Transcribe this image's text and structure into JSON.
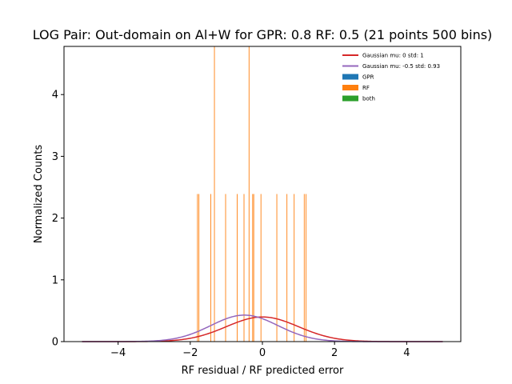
{
  "chart_data": {
    "type": "histogram",
    "title": "LOG Pair: Out-domain on Al+W for GPR: 0.8 RF: 0.5 (21 points 500 bins)",
    "xlabel": "RF residual / RF predicted error",
    "ylabel": "Normalized Counts",
    "xlim": [
      -5.5,
      5.5
    ],
    "ylim": [
      0,
      4.78
    ],
    "xticks": [
      -4,
      -2,
      0,
      2,
      4
    ],
    "xtick_labels": [
      "−4",
      "−2",
      "0",
      "2",
      "4"
    ],
    "yticks": [
      0,
      1,
      2,
      3,
      4
    ],
    "ytick_labels": [
      "0",
      "1",
      "2",
      "3",
      "4"
    ],
    "grid": false,
    "legend_position": "top-right",
    "legend": [
      {
        "label": "Gaussian mu: 0 std: 1",
        "kind": "line",
        "color": "#d62728"
      },
      {
        "label": "Gaussian mu: -0.5 std: 0.93",
        "kind": "line",
        "color": "#9467bd"
      },
      {
        "label": "GPR",
        "kind": "patch",
        "color": "#1f77b4"
      },
      {
        "label": "RF",
        "kind": "patch",
        "color": "#ff7f0e"
      },
      {
        "label": "both",
        "kind": "patch",
        "color": "#2ca02c"
      }
    ],
    "bin_width": 0.0198,
    "rf_bars": [
      {
        "x": -1.8,
        "y": 2.39
      },
      {
        "x": -1.76,
        "y": 2.39
      },
      {
        "x": -1.43,
        "y": 2.39
      },
      {
        "x": -1.33,
        "y": 4.78
      },
      {
        "x": -1.02,
        "y": 2.39
      },
      {
        "x": -0.7,
        "y": 2.39
      },
      {
        "x": -0.51,
        "y": 2.39
      },
      {
        "x": -0.37,
        "y": 4.78
      },
      {
        "x": -0.27,
        "y": 2.39
      },
      {
        "x": -0.24,
        "y": 2.39
      },
      {
        "x": -0.04,
        "y": 2.39
      },
      {
        "x": 0.4,
        "y": 2.39
      },
      {
        "x": 0.68,
        "y": 2.39
      },
      {
        "x": 0.88,
        "y": 2.39
      },
      {
        "x": 1.16,
        "y": 2.39
      },
      {
        "x": 1.21,
        "y": 2.39
      }
    ],
    "series": [
      {
        "name": "Gaussian mu: 0 std: 1",
        "mu": 0,
        "std": 1,
        "x_range": [
          -5,
          5
        ],
        "color": "#d62728"
      },
      {
        "name": "Gaussian mu: -0.5 std: 0.93",
        "mu": -0.5,
        "std": 0.93,
        "x_range": [
          -5,
          5
        ],
        "color": "#9467bd"
      }
    ]
  }
}
